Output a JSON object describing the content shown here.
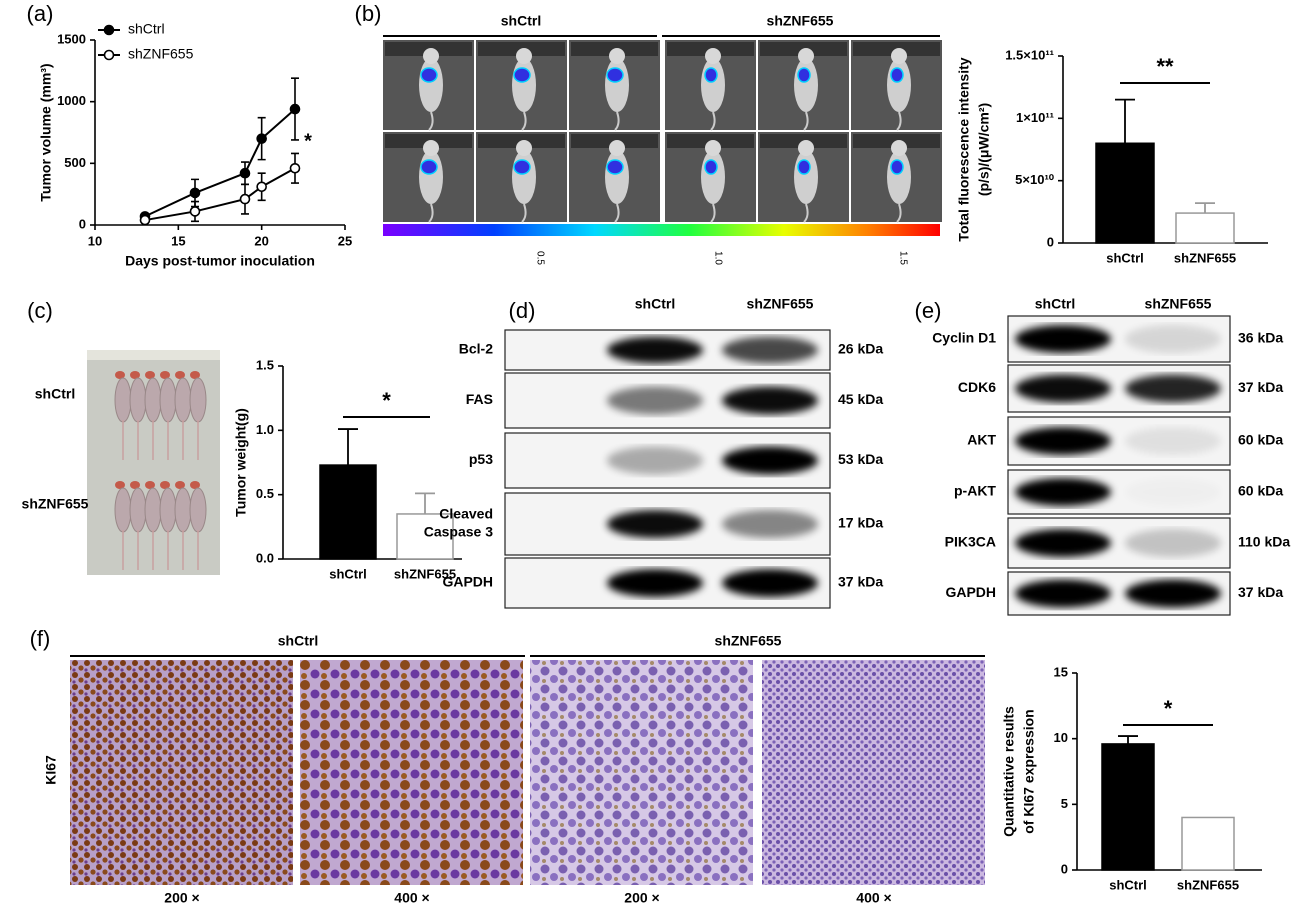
{
  "panel_labels": [
    "(a)",
    "(b)",
    "(c)",
    "(d)",
    "(e)",
    "(f)"
  ],
  "chart_data": [
    {
      "type": "line",
      "xlabel": "Days post-tumor inoculation",
      "ylabel": "Tumor volume (mm³)",
      "x": [
        13,
        16,
        19,
        20,
        22
      ],
      "xlim": [
        10,
        25
      ],
      "xticks": [
        10,
        15,
        20,
        25
      ],
      "ylim": [
        0,
        1500
      ],
      "yticks": [
        0,
        500,
        1000,
        1500
      ],
      "legend": "upper left",
      "annotation": "*",
      "series": [
        {
          "name": "shCtrl",
          "color": "#000000",
          "marker": "filled",
          "values": [
            70,
            260,
            420,
            700,
            940
          ],
          "errors": [
            20,
            110,
            90,
            170,
            250
          ]
        },
        {
          "name": "shZNF655",
          "color": "#000000",
          "marker": "open",
          "values": [
            40,
            110,
            210,
            310,
            460
          ],
          "errors": [
            15,
            80,
            120,
            110,
            120
          ]
        }
      ]
    },
    {
      "type": "bar",
      "ylabel": [
        "Total fluorescence intensity",
        "(p/s)/(μW/cm²)"
      ],
      "categories": [
        "shCtrl",
        "shZNF655"
      ],
      "values": [
        80000000000,
        24000000000
      ],
      "errors": [
        35000000000,
        8000000000
      ],
      "colors": [
        "#000000",
        "#ffffff"
      ],
      "edgecolors": [
        "#000000",
        "#999999"
      ],
      "ylim": [
        0,
        150000000000
      ],
      "yticks": [
        0,
        {
          "value": 50000000000,
          "label": "5×10¹⁰"
        },
        {
          "value": 100000000000,
          "label": "1×10¹¹"
        },
        {
          "value": 150000000000,
          "label": "1.5×10¹¹"
        }
      ],
      "annotation": "**"
    },
    {
      "type": "bar",
      "ylabel": [
        "Tumor weight(g)"
      ],
      "categories": [
        "shCtrl",
        "shZNF655"
      ],
      "values": [
        0.73,
        0.35
      ],
      "errors": [
        0.28,
        0.16
      ],
      "colors": [
        "#000000",
        "#ffffff"
      ],
      "edgecolors": [
        "#000000",
        "#999999"
      ],
      "ylim": [
        0,
        1.5
      ],
      "yticks": [
        {
          "value": 0,
          "label": "0.0"
        },
        0.5,
        {
          "value": 1,
          "label": "1.0"
        },
        1.5
      ],
      "annotation": "*"
    },
    {
      "type": "bar",
      "ylabel": [
        "Quantitative results",
        "of KI67 expression"
      ],
      "categories": [
        "shCtrl",
        "shZNF655"
      ],
      "values": [
        9.6,
        4.0
      ],
      "errors": [
        0.6,
        0
      ],
      "colors": [
        "#000000",
        "#ffffff"
      ],
      "edgecolors": [
        "#000000",
        "#999999"
      ],
      "ylim": [
        0,
        15
      ],
      "yticks": [
        0,
        5,
        10,
        15
      ],
      "annotation": "*"
    }
  ],
  "imaging": {
    "groups": [
      "shCtrl",
      "shZNF655"
    ],
    "colorbar_ticks": [
      "0.5",
      "1.0",
      "1.5"
    ]
  },
  "photo": {
    "groups": [
      "shCtrl",
      "shZNF655"
    ]
  },
  "blot_d": {
    "groups": [
      "shCtrl",
      "shZNF655"
    ],
    "rows": [
      {
        "label": "Bcl-2",
        "size": "26 kDa"
      },
      {
        "label": "FAS",
        "size": "45 kDa"
      },
      {
        "label": "p53",
        "size": "53 kDa"
      },
      {
        "label": [
          "Cleaved",
          "Caspase 3"
        ],
        "size": "17 kDa"
      },
      {
        "label": "GAPDH",
        "size": "37 kDa"
      }
    ]
  },
  "blot_e": {
    "groups": [
      "shCtrl",
      "shZNF655"
    ],
    "rows": [
      {
        "label": "Cyclin D1",
        "size": "36 kDa"
      },
      {
        "label": "CDK6",
        "size": "37 kDa"
      },
      {
        "label": "AKT",
        "size": "60 kDa"
      },
      {
        "label": "p-AKT",
        "size": "60 kDa"
      },
      {
        "label": "PIK3CA",
        "size": "110 kDa"
      },
      {
        "label": "GAPDH",
        "size": "37 kDa"
      }
    ]
  },
  "ihc": {
    "groups": [
      "shCtrl",
      "shZNF655"
    ],
    "marker": "KI67",
    "magnifications": [
      "200 ×",
      "400 ×",
      "200 ×",
      "400 ×"
    ]
  }
}
